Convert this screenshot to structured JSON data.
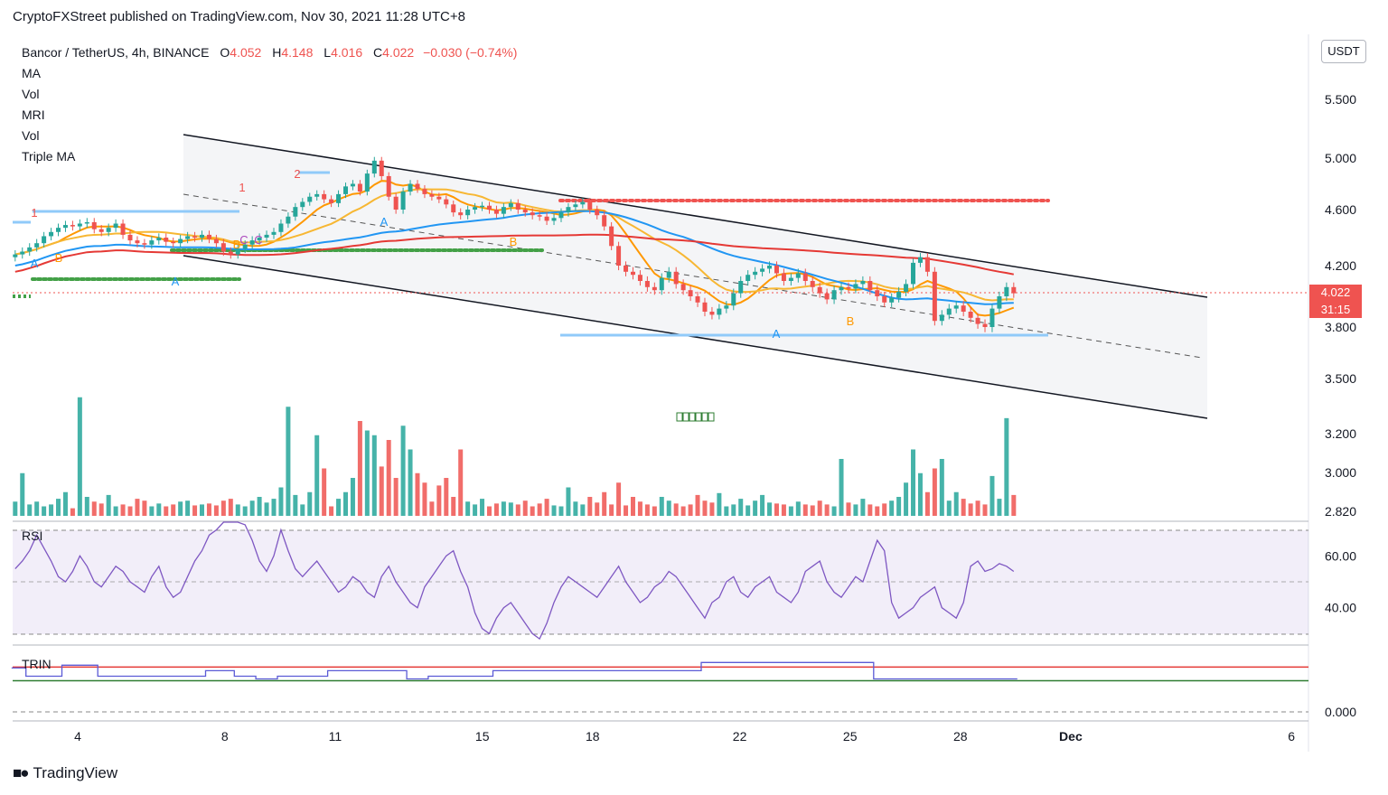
{
  "header": {
    "text": "CryptoFXStreet published on TradingView.com, Nov 30, 2021 11:28 UTC+8"
  },
  "legend": {
    "symbol": "Bancor / TetherUS, 4h, BINANCE",
    "open_label": "O",
    "open": "4.052",
    "high_label": "H",
    "high": "4.148",
    "low_label": "L",
    "low": "4.016",
    "close_label": "C",
    "close": "4.022",
    "change": "−0.030 (−0.74%)",
    "indicators": [
      "MA",
      "Vol",
      "MRI",
      "Vol",
      "Triple MA"
    ]
  },
  "currency": "USDT",
  "current_price": {
    "price": "4.022",
    "countdown": "31:15"
  },
  "panes": {
    "rsi_label": "RSI",
    "trin_label": "TRIN"
  },
  "footer": {
    "brand": "TradingView"
  },
  "colors": {
    "up": "#26a69a",
    "down": "#ef5350",
    "ma_fast": "#ff9800",
    "ma_mid": "#f7b733",
    "ma_blue": "#2196f3",
    "ma_red": "#e53935",
    "rsi": "#7e57c2",
    "trin": "#5b5bd6"
  },
  "chart_data": {
    "type": "candlestick",
    "price_axis": {
      "ticks": [
        "5.500",
        "5.000",
        "4.600",
        "4.200",
        "3.800",
        "3.500",
        "3.200",
        "3.000",
        "2.820"
      ]
    },
    "rsi_axis": {
      "ticks": [
        "60.00",
        "40.00"
      ]
    },
    "trin_axis": {
      "ticks": [
        "0.000"
      ]
    },
    "x_ticks": [
      {
        "label": "4",
        "day": 4
      },
      {
        "label": "8",
        "day": 8
      },
      {
        "label": "11",
        "day": 11
      },
      {
        "label": "15",
        "day": 15
      },
      {
        "label": "18",
        "day": 18
      },
      {
        "label": "22",
        "day": 22
      },
      {
        "label": "25",
        "day": 25
      },
      {
        "label": "28",
        "day": 28
      },
      {
        "label": "Dec",
        "day": 31
      },
      {
        "label": "6",
        "day": 37
      }
    ],
    "candles": {
      "start_day": 2.3,
      "count": 140,
      "closes": [
        4.28,
        4.3,
        4.33,
        4.36,
        4.41,
        4.44,
        4.47,
        4.49,
        4.48,
        4.5,
        4.51,
        4.46,
        4.44,
        4.47,
        4.5,
        4.42,
        4.38,
        4.36,
        4.35,
        4.38,
        4.4,
        4.37,
        4.36,
        4.39,
        4.41,
        4.4,
        4.42,
        4.39,
        4.36,
        4.3,
        4.28,
        4.32,
        4.35,
        4.38,
        4.4,
        4.42,
        4.44,
        4.5,
        4.55,
        4.62,
        4.66,
        4.7,
        4.72,
        4.68,
        4.65,
        4.72,
        4.78,
        4.8,
        4.74,
        4.88,
        4.98,
        4.86,
        4.7,
        4.6,
        4.74,
        4.8,
        4.76,
        4.72,
        4.7,
        4.68,
        4.64,
        4.58,
        4.56,
        4.6,
        4.62,
        4.63,
        4.6,
        4.57,
        4.62,
        4.65,
        4.6,
        4.58,
        4.56,
        4.55,
        4.52,
        4.54,
        4.58,
        4.62,
        4.64,
        4.66,
        4.6,
        4.56,
        4.48,
        4.34,
        4.2,
        4.16,
        4.14,
        4.1,
        4.06,
        4.04,
        4.12,
        4.16,
        4.08,
        4.04,
        4.0,
        3.96,
        3.9,
        3.88,
        3.92,
        3.94,
        4.02,
        4.1,
        4.14,
        4.16,
        4.18,
        4.2,
        4.15,
        4.1,
        4.12,
        4.15,
        4.1,
        4.06,
        4.02,
        3.98,
        4.04,
        4.06,
        4.05,
        4.08,
        4.1,
        4.04,
        4.0,
        3.96,
        3.99,
        4.03,
        4.08,
        4.22,
        4.26,
        4.16,
        3.84,
        3.88,
        3.92,
        3.94,
        3.9,
        3.86,
        3.82,
        3.8,
        3.92,
        4.0,
        4.06,
        4.02
      ],
      "volumes": [
        1.5,
        4.5,
        1.2,
        1.5,
        1.0,
        1.2,
        1.8,
        2.5,
        0.8,
        12.5,
        2.0,
        1.5,
        1.3,
        2.2,
        1.0,
        1.2,
        1.0,
        1.8,
        1.6,
        1.0,
        1.3,
        1.0,
        1.2,
        1.5,
        1.6,
        1.1,
        1.2,
        1.3,
        1.1,
        1.6,
        1.8,
        1.2,
        1.0,
        1.6,
        2.0,
        1.4,
        1.8,
        3.0,
        11.5,
        2.2,
        1.2,
        2.5,
        8.5,
        5.0,
        1.0,
        1.8,
        2.5,
        4.0,
        10.0,
        9.0,
        8.5,
        5.2,
        8.0,
        4.0,
        9.5,
        7.0,
        4.5,
        3.5,
        1.5,
        3.2,
        4.0,
        2.0,
        7.0,
        1.5,
        1.2,
        1.8,
        1.0,
        1.3,
        1.5,
        1.4,
        1.2,
        1.6,
        1.0,
        1.3,
        1.8,
        1.1,
        1.0,
        3.0,
        1.5,
        1.2,
        2.0,
        1.4,
        2.5,
        1.2,
        3.5,
        1.1,
        2.0,
        1.5,
        1.2,
        1.0,
        2.0,
        1.6,
        1.3,
        1.0,
        1.2,
        2.2,
        1.6,
        1.4,
        2.4,
        1.0,
        1.2,
        1.8,
        1.1,
        1.6,
        2.2,
        1.4,
        1.3,
        1.2,
        1.0,
        1.5,
        1.2,
        1.1,
        1.6,
        1.2,
        1.0,
        6.0,
        1.4,
        1.2,
        1.8,
        1.2,
        1.0,
        1.3,
        1.6,
        2.0,
        3.5,
        7.0,
        4.5,
        2.5,
        5.0,
        6.0,
        1.6,
        2.5,
        1.8,
        1.3,
        1.6,
        1.2,
        4.2,
        1.8,
        10.3,
        2.2,
        2.5,
        2.2,
        7.5,
        3.0
      ]
    },
    "rsi_series": [
      55,
      58,
      62,
      68,
      63,
      58,
      52,
      50,
      54,
      60,
      56,
      50,
      48,
      52,
      56,
      54,
      50,
      48,
      46,
      52,
      56,
      48,
      44,
      46,
      52,
      58,
      62,
      68,
      70,
      74,
      76,
      78,
      72,
      66,
      58,
      54,
      60,
      70,
      62,
      55,
      52,
      55,
      58,
      54,
      50,
      46,
      48,
      52,
      50,
      46,
      44,
      52,
      56,
      50,
      46,
      42,
      40,
      48,
      52,
      56,
      60,
      62,
      54,
      48,
      38,
      32,
      30,
      36,
      40,
      42,
      38,
      34,
      30,
      28,
      34,
      42,
      48,
      52,
      50,
      48,
      46,
      44,
      48,
      52,
      56,
      50,
      46,
      42,
      44,
      48,
      50,
      54,
      52,
      48,
      44,
      40,
      36,
      42,
      44,
      50,
      52,
      46,
      44,
      48,
      50,
      52,
      46,
      44,
      42,
      46,
      54,
      56,
      58,
      50,
      46,
      44,
      48,
      52,
      50,
      58,
      66,
      62,
      42,
      36,
      38,
      40,
      44,
      46,
      48,
      40,
      38,
      36,
      42,
      56,
      58,
      54,
      55,
      57,
      56,
      54
    ],
    "trin_series": [
      0.32,
      0.32,
      0.26,
      0.26,
      0.26,
      0.26,
      0.26,
      0.34,
      0.34,
      0.34,
      0.34,
      0.34,
      0.26,
      0.26,
      0.26,
      0.26,
      0.26,
      0.26,
      0.26,
      0.26,
      0.26,
      0.26,
      0.26,
      0.26,
      0.26,
      0.26,
      0.26,
      0.3,
      0.3,
      0.3,
      0.3,
      0.26,
      0.26,
      0.26,
      0.24,
      0.24,
      0.24,
      0.26,
      0.26,
      0.26,
      0.26,
      0.26,
      0.26,
      0.26,
      0.3,
      0.3,
      0.3,
      0.3,
      0.3,
      0.3,
      0.3,
      0.3,
      0.3,
      0.3,
      0.3,
      0.24,
      0.24,
      0.24,
      0.26,
      0.26,
      0.26,
      0.26,
      0.26,
      0.26,
      0.26,
      0.26,
      0.26,
      0.3,
      0.3,
      0.3,
      0.3,
      0.3,
      0.3,
      0.3,
      0.3,
      0.3,
      0.3,
      0.3,
      0.3,
      0.3,
      0.3,
      0.3,
      0.3,
      0.3,
      0.3,
      0.3,
      0.3,
      0.3,
      0.3,
      0.3,
      0.3,
      0.3,
      0.3,
      0.3,
      0.3,
      0.3,
      0.36,
      0.36,
      0.36,
      0.36,
      0.36,
      0.36,
      0.36,
      0.36,
      0.36,
      0.36,
      0.36,
      0.36,
      0.36,
      0.36,
      0.36,
      0.36,
      0.36,
      0.36,
      0.36,
      0.36,
      0.36,
      0.36,
      0.36,
      0.36,
      0.24,
      0.24,
      0.24,
      0.24,
      0.24,
      0.24,
      0.24,
      0.24,
      0.24,
      0.24,
      0.24,
      0.24,
      0.24,
      0.24,
      0.24,
      0.24,
      0.24,
      0.24,
      0.24,
      0.24
    ],
    "trin_red_level": 0.34,
    "trin_green_level": 0.24
  }
}
